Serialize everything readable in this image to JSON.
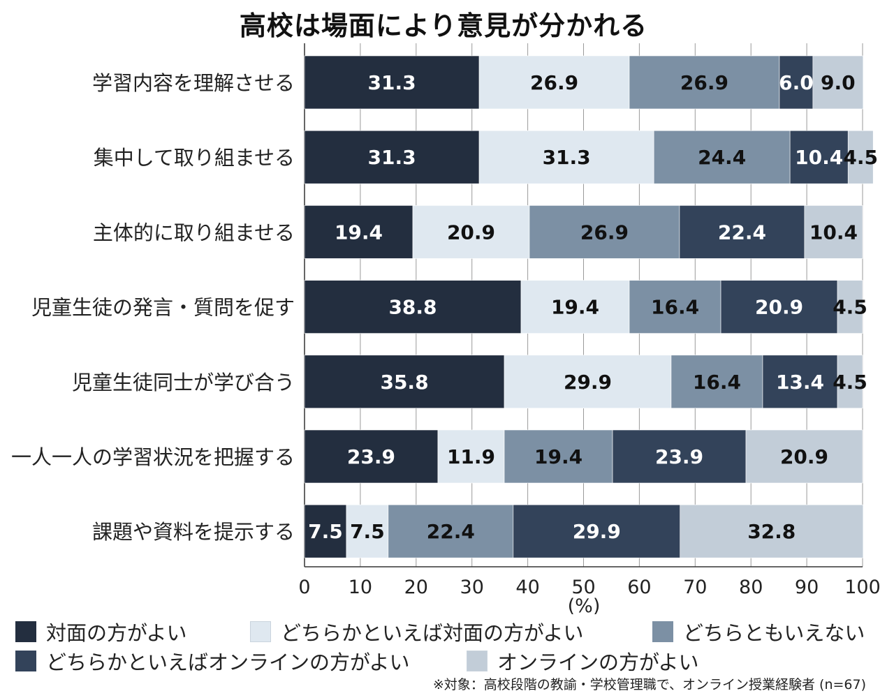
{
  "chart_data": {
    "type": "bar",
    "orientation": "horizontal",
    "stacked": true,
    "title": "高校は場面により意見が分かれる",
    "categories": [
      "学習内容を理解させる",
      "集中して取り組ませる",
      "主体的に取り組ませる",
      "児童生徒の発言・質問を促す",
      "児童生徒同士が学び合う",
      "一人一人の学習状況を把握する",
      "課題や資料を提示する"
    ],
    "series": [
      {
        "name": "対面の方がよい",
        "color": "#232e3f",
        "label_color": "#ffffff",
        "values": [
          31.3,
          31.3,
          19.4,
          38.8,
          35.8,
          23.9,
          7.5
        ]
      },
      {
        "name": "どちらかといえば対面の方がよい",
        "color": "#dfe8f0",
        "label_color": "#111111",
        "values": [
          26.9,
          31.3,
          20.9,
          19.4,
          29.9,
          11.9,
          7.5
        ]
      },
      {
        "name": "どちらともいえない",
        "color": "#7c90a4",
        "label_color": "#111111",
        "values": [
          26.9,
          24.4,
          26.9,
          16.4,
          16.4,
          19.4,
          22.4
        ]
      },
      {
        "name": "どちらかといえばオンラインの方がよい",
        "color": "#33435a",
        "label_color": "#ffffff",
        "values": [
          6.0,
          10.4,
          22.4,
          20.9,
          13.4,
          23.9,
          29.9
        ]
      },
      {
        "name": "オンラインの方がよい",
        "color": "#c2cdd8",
        "label_color": "#111111",
        "values": [
          9.0,
          4.5,
          10.4,
          4.5,
          4.5,
          20.9,
          32.8
        ]
      }
    ],
    "xlim": [
      0,
      100
    ],
    "xticks": [
      "0",
      "10",
      "20",
      "30",
      "40",
      "50",
      "60",
      "70",
      "80",
      "90",
      "100"
    ],
    "xlabel": "(%)",
    "grid": true,
    "legend_position": "bottom",
    "note": "※対象：高校段階の教諭・学校管理職で、オンライン授業経験者 (n=67)"
  }
}
